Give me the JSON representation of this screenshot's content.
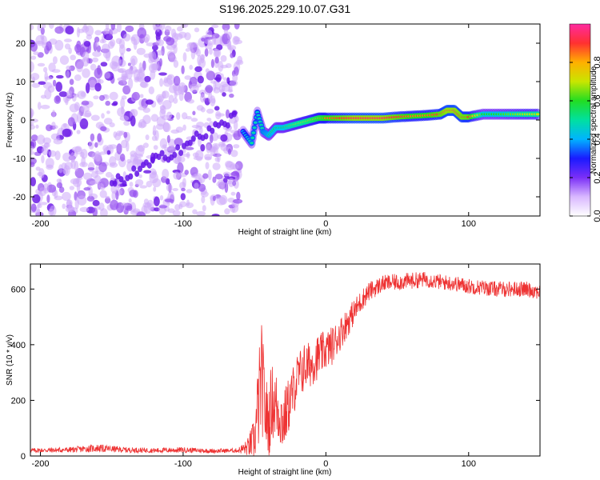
{
  "title": "S196.2025.229.10.07.G31",
  "chart_data": [
    {
      "type": "heatmap",
      "name": "spectrogram",
      "xlabel": "Height of straight line (km)",
      "ylabel": "Frequency (Hz)",
      "xlim": [
        -207,
        150
      ],
      "ylim": [
        -25,
        25
      ],
      "xticks": [
        -200,
        -100,
        0,
        100
      ],
      "yticks": [
        -20,
        -10,
        0,
        10,
        20
      ],
      "colorbar": {
        "label": "Normalized spectral amplitude",
        "range": [
          0,
          1
        ],
        "ticks": [
          0.0,
          0.2,
          0.4,
          0.6,
          0.8
        ],
        "tick_labels": [
          "0.0",
          "0.2",
          "0.4",
          "0.6",
          "0.8"
        ],
        "colormap": [
          "#ffffff",
          "#d9b8ff",
          "#7b2ff7",
          "#1a1aff",
          "#00b4ff",
          "#00e0a0",
          "#22dd22",
          "#c8e600",
          "#ffb000",
          "#ff3030",
          "#ff2aa0"
        ]
      },
      "noise_region": {
        "x": [
          -207,
          -60
        ],
        "y": [
          -25,
          25
        ],
        "amplitude": 0.25
      },
      "signal_track": {
        "x": [
          -58,
          -52,
          -48,
          -44,
          -40,
          -35,
          -30,
          -25,
          -20,
          -15,
          -10,
          -5,
          0,
          10,
          20,
          30,
          40,
          50,
          60,
          70,
          80,
          85,
          90,
          95,
          100,
          110,
          120,
          130,
          140,
          150
        ],
        "freq": [
          -3,
          -6,
          2,
          -3,
          -4,
          -2,
          -2,
          -1.5,
          -1,
          -0.5,
          0,
          0.5,
          0.5,
          0.5,
          0.5,
          0.5,
          0.5,
          0.8,
          1,
          1.2,
          1.5,
          2.5,
          2.5,
          0.8,
          0.8,
          1.5,
          1.5,
          1.5,
          1.5,
          1.5
        ],
        "amplitude": [
          0.4,
          0.5,
          0.45,
          0.5,
          0.55,
          0.6,
          0.6,
          0.65,
          0.7,
          0.72,
          0.75,
          0.8,
          0.85,
          0.9,
          0.95,
          0.95,
          0.95,
          0.9,
          0.85,
          0.85,
          0.9,
          0.95,
          0.95,
          0.92,
          0.9,
          0.6,
          0.6,
          0.65,
          0.7,
          0.7
        ]
      }
    },
    {
      "type": "line",
      "name": "snr",
      "xlabel": "Height of straight line (km)",
      "ylabel": "SNR (10 * v/v)",
      "xlim": [
        -207,
        150
      ],
      "ylim": [
        0,
        690
      ],
      "xticks": [
        -200,
        -100,
        0,
        100
      ],
      "yticks": [
        0,
        200,
        400,
        600
      ],
      "color": "#ee3333",
      "x": [
        -207,
        -180,
        -160,
        -140,
        -120,
        -100,
        -80,
        -62,
        -55,
        -50,
        -47,
        -45,
        -42,
        -40,
        -38,
        -35,
        -32,
        -30,
        -25,
        -20,
        -15,
        -10,
        -5,
        0,
        5,
        10,
        15,
        20,
        25,
        30,
        40,
        50,
        60,
        70,
        80,
        90,
        100,
        110,
        120,
        130,
        140,
        150
      ],
      "y": [
        20,
        22,
        28,
        22,
        20,
        22,
        18,
        20,
        30,
        60,
        200,
        280,
        150,
        120,
        200,
        180,
        150,
        120,
        200,
        280,
        320,
        330,
        360,
        380,
        400,
        440,
        480,
        520,
        560,
        590,
        620,
        625,
        630,
        635,
        625,
        620,
        610,
        605,
        600,
        600,
        600,
        590
      ],
      "noise": [
        8,
        10,
        14,
        10,
        9,
        10,
        8,
        8,
        30,
        80,
        180,
        200,
        140,
        130,
        140,
        130,
        120,
        110,
        100,
        90,
        90,
        80,
        80,
        70,
        70,
        60,
        55,
        45,
        40,
        35,
        30,
        30,
        30,
        28,
        28,
        28,
        28,
        28,
        28,
        28,
        28,
        28
      ]
    }
  ]
}
